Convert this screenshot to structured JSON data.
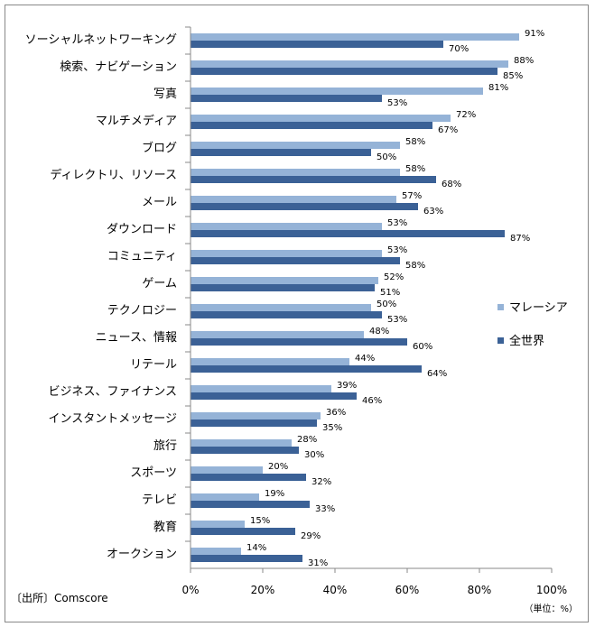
{
  "chart_data": {
    "type": "bar",
    "orientation": "horizontal",
    "categories": [
      "ソーシャルネットワーキング",
      "検索、ナビゲーション",
      "写真",
      "マルチメディア",
      "ブログ",
      "ディレクトリ、リソース",
      "メール",
      "ダウンロード",
      "コミュニティ",
      "ゲーム",
      "テクノロジー",
      "ニュース、情報",
      "リテール",
      "ビジネス、ファイナンス",
      "インスタントメッセージ",
      "旅行",
      "スポーツ",
      "テレビ",
      "教育",
      "オークション"
    ],
    "series": [
      {
        "name": "マレーシア",
        "color": "#95B3D7",
        "values": [
          91,
          88,
          81,
          72,
          58,
          58,
          57,
          53,
          53,
          52,
          50,
          48,
          44,
          39,
          36,
          28,
          20,
          19,
          15,
          14
        ]
      },
      {
        "name": "全世界",
        "color": "#3B6196",
        "values": [
          70,
          85,
          53,
          67,
          50,
          68,
          63,
          87,
          58,
          51,
          53,
          60,
          64,
          46,
          35,
          30,
          32,
          33,
          29,
          31
        ]
      }
    ],
    "xlim": [
      0,
      100
    ],
    "xticks": [
      "0%",
      "20%",
      "40%",
      "60%",
      "80%",
      "100%"
    ],
    "value_suffix": "%",
    "legend_position": "right",
    "grid": false,
    "source": "〔出所〕Comscore",
    "unit": "（単位：%）"
  }
}
